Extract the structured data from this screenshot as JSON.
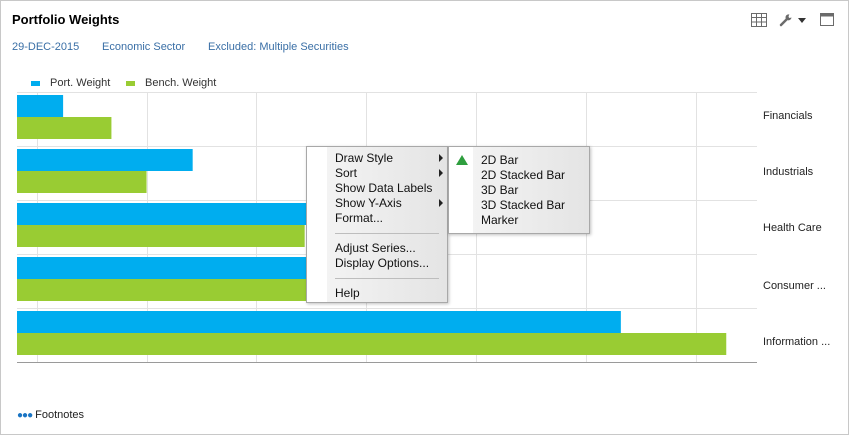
{
  "header": {
    "title": "Portfolio Weights",
    "date": "29-DEC-2015",
    "grouping": "Economic Sector",
    "excluded": "Excluded: Multiple Securities"
  },
  "toolbar_icons": [
    "grid-icon",
    "wrench-icon",
    "dropdown-caret-icon",
    "maximize-icon"
  ],
  "colors": {
    "port": "#00adef",
    "bench": "#99cc33",
    "grid": "#e2e2e2",
    "link": "#3a6fa6"
  },
  "chart_data": {
    "type": "bar",
    "orientation": "horizontal",
    "categories": [
      "Financials",
      "Industrials",
      "Health Care",
      "Consumer ...",
      "Information ..."
    ],
    "series": [
      {
        "name": "Port. Weight",
        "values": [
          6.2,
          12.1,
          18.9,
          17.6,
          31.6
        ]
      },
      {
        "name": "Bench. Weight",
        "values": [
          8.4,
          10.0,
          17.2,
          20.0,
          36.4
        ]
      }
    ],
    "xticks": [
      5,
      10,
      15,
      20,
      25,
      30,
      35
    ],
    "xlim": [
      4.1,
      37.8
    ],
    "grid": true,
    "legend": "top-left"
  },
  "context_menu": {
    "items": [
      "Draw Style",
      "Sort",
      "Show Data Labels",
      "Show Y-Axis",
      "Format...",
      "Adjust Series...",
      "Display Options...",
      "Help"
    ],
    "submenu": [
      "2D Bar",
      "2D Stacked Bar",
      "3D Bar",
      "3D Stacked Bar",
      "Marker"
    ]
  },
  "footer": {
    "footnotes": "Footnotes"
  }
}
